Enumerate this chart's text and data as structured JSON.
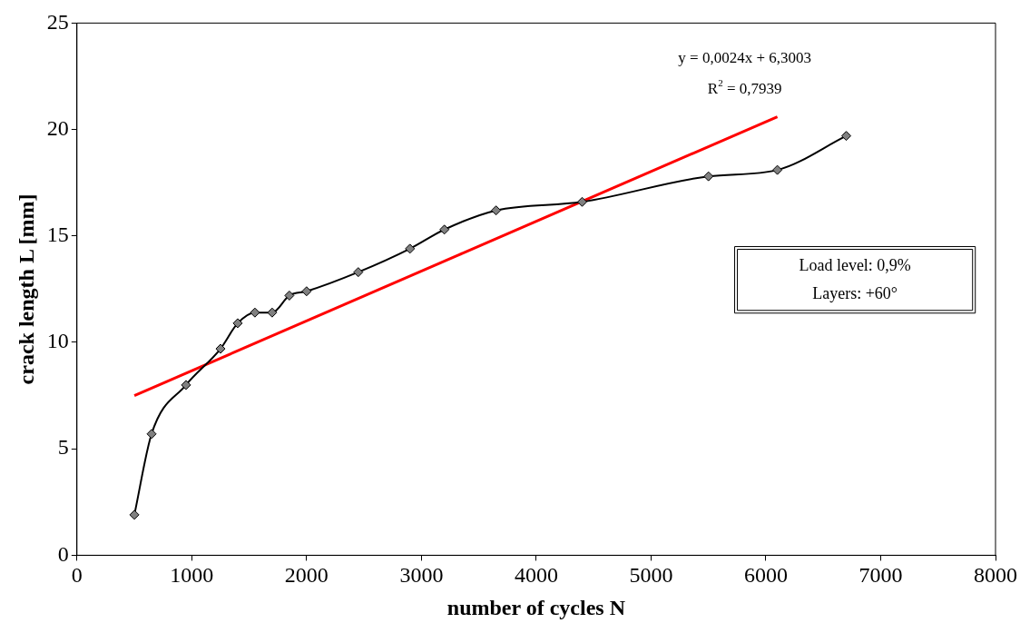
{
  "chart_data": {
    "type": "line",
    "xlabel": "number of cycles N",
    "ylabel": "crack length L [mm]",
    "xlim": [
      0,
      8000
    ],
    "xticks": [
      0,
      1000,
      2000,
      3000,
      4000,
      5000,
      6000,
      7000,
      8000
    ],
    "ylim": [
      0,
      25
    ],
    "yticks": [
      0,
      5,
      10,
      15,
      20,
      25
    ],
    "grid": false,
    "legend": false,
    "marker": "diamond",
    "line_style": "solid",
    "series": [
      {
        "color": "#000000",
        "x": [
          500,
          650,
          950,
          1250,
          1400,
          1550,
          1700,
          1850,
          2000,
          2450,
          2900,
          3200,
          3650,
          4400,
          5500,
          6100,
          6700
        ],
        "values": [
          1.9,
          5.7,
          8.0,
          9.7,
          10.9,
          11.4,
          11.4,
          12.2,
          12.4,
          13.3,
          14.4,
          15.3,
          16.2,
          16.6,
          17.8,
          18.1,
          19.7
        ]
      },
      {
        "type": "line",
        "marker": "none",
        "color": "#ff0000",
        "x": [
          500,
          6100
        ],
        "values": [
          7.5,
          20.6
        ]
      }
    ],
    "annotations": [
      "y = 0,0024x + 6,3003",
      "R$^{2}$ = 0,7939",
      "Load level: 0,9%",
      "Layers: +60°"
    ]
  }
}
